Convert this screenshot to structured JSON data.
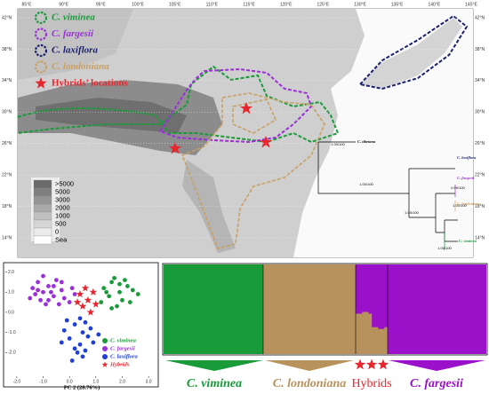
{
  "map": {
    "lon_labels": [
      "85°E",
      "90°E",
      "95°E",
      "100°E",
      "105°E",
      "110°E",
      "115°E",
      "120°E",
      "125°E",
      "130°E",
      "135°E",
      "140°E",
      "145°E"
    ],
    "lat_labels": [
      "42°N",
      "38°N",
      "34°N",
      "30°N",
      "26°N",
      "22°N",
      "18°N",
      "14°N"
    ],
    "legend": [
      {
        "name": "C. viminea",
        "color": "#1a9b3a"
      },
      {
        "name": "C. fargesii",
        "color": "#9b30d9"
      },
      {
        "name": "C. laxiflora",
        "color": "#1a1f6e"
      },
      {
        "name": "C. londoniana",
        "color": "#c9a064"
      },
      {
        "name": "Hybrids’ locations",
        "color": "#e8262e"
      }
    ],
    "elevation_labels": [
      ">5000",
      "5000",
      "3000",
      "2000",
      "1000",
      "500",
      "0",
      "Sea"
    ]
  },
  "tree": {
    "leaves": [
      "C. tibetana",
      "C. laxiflora",
      "C. fargesii",
      "C. londoniana",
      "C. viminea"
    ],
    "supports": [
      "1.00/100",
      "1.00/100",
      "1.00/100",
      "0.99/100",
      "1.00/100",
      "1.00/100"
    ]
  },
  "pca": {
    "x_label": "PC 2 (28.76%)",
    "xlim": [
      -2.3,
      3.3
    ],
    "ylim": [
      -3,
      2.2
    ],
    "xticks": [
      {
        "value": -2,
        "label": "-2.0"
      },
      {
        "value": -1,
        "label": "-1.0"
      },
      {
        "value": 0,
        "label": "0.0"
      },
      {
        "value": 1,
        "label": "1.0"
      },
      {
        "value": 2,
        "label": "2.0"
      },
      {
        "value": 3,
        "label": "3.0"
      }
    ],
    "yticks": [
      {
        "value": 2,
        "label": "2.0"
      },
      {
        "value": 1,
        "label": "1.0"
      },
      {
        "value": 0,
        "label": "0.0"
      },
      {
        "value": -1,
        "label": "-1.0"
      },
      {
        "value": -2,
        "label": "-2.0"
      }
    ],
    "series": [
      {
        "name": "C. viminea",
        "color": "#1a9b3a",
        "marker": "circle",
        "x": [
          1.3,
          1.6,
          1.9,
          2.2,
          1.5,
          2.0,
          2.4,
          1.7,
          1.2,
          2.6,
          1.8,
          2.1,
          1.4,
          2.3,
          1.9,
          1.6
        ],
        "y": [
          1.2,
          1.5,
          1.0,
          1.3,
          0.8,
          0.6,
          1.1,
          1.7,
          0.5,
          0.9,
          0.3,
          1.6,
          1.0,
          0.5,
          1.4,
          0.2
        ]
      },
      {
        "name": "C. fargesii",
        "color": "#9b30d9",
        "marker": "circle",
        "x": [
          -1.4,
          -1.2,
          -1.0,
          -0.8,
          -0.6,
          -1.1,
          -0.3,
          -0.5,
          -1.3,
          -0.9,
          -0.2,
          0.1,
          -0.7,
          -1.5,
          -0.4,
          0.2,
          -1.0,
          -0.6,
          -1.2,
          0.0,
          -0.8,
          -0.3
        ],
        "y": [
          1.2,
          1.5,
          1.0,
          1.3,
          0.8,
          0.6,
          1.1,
          1.6,
          0.9,
          0.4,
          0.7,
          1.2,
          1.0,
          0.7,
          0.4,
          0.9,
          1.8,
          1.3,
          1.1,
          0.5,
          0.6,
          1.5
        ]
      },
      {
        "name": "C. laxiflora",
        "color": "#1f3fd6",
        "marker": "circle",
        "x": [
          0.2,
          0.5,
          0.0,
          0.4,
          0.7,
          -0.2,
          0.3,
          0.6,
          0.9,
          0.1,
          -0.3,
          0.8,
          0.4,
          0.2,
          0.5,
          1.1,
          -0.1,
          0.6
        ],
        "y": [
          -0.6,
          -1.0,
          -1.3,
          -1.6,
          -1.2,
          -0.9,
          -2.0,
          -0.5,
          -1.5,
          -2.4,
          -1.5,
          -0.8,
          -0.3,
          -1.8,
          -2.2,
          -1.1,
          -0.4,
          -1.9
        ]
      },
      {
        "name": "Hybrids",
        "color": "#e8262e",
        "marker": "star",
        "x": [
          0.4,
          0.7,
          0.5,
          0.9,
          0.6,
          1.0,
          0.3,
          0.8
        ],
        "y": [
          0.9,
          0.6,
          0.3,
          1.0,
          1.2,
          0.4,
          0.5,
          0.0
        ]
      }
    ]
  },
  "structure": {
    "groups": [
      "C. viminea",
      "C. londoniana",
      "Hybrids",
      "C. fargesii"
    ],
    "colors": [
      "#1a9b3a",
      "#b8925c",
      "#e8262e",
      "#9b10c9"
    ],
    "hybrid_londoniana_share": [
      0.45,
      0.45,
      0.47,
      0.47,
      0.45,
      0.3,
      0.3,
      0.28,
      0.28,
      0.3
    ]
  }
}
